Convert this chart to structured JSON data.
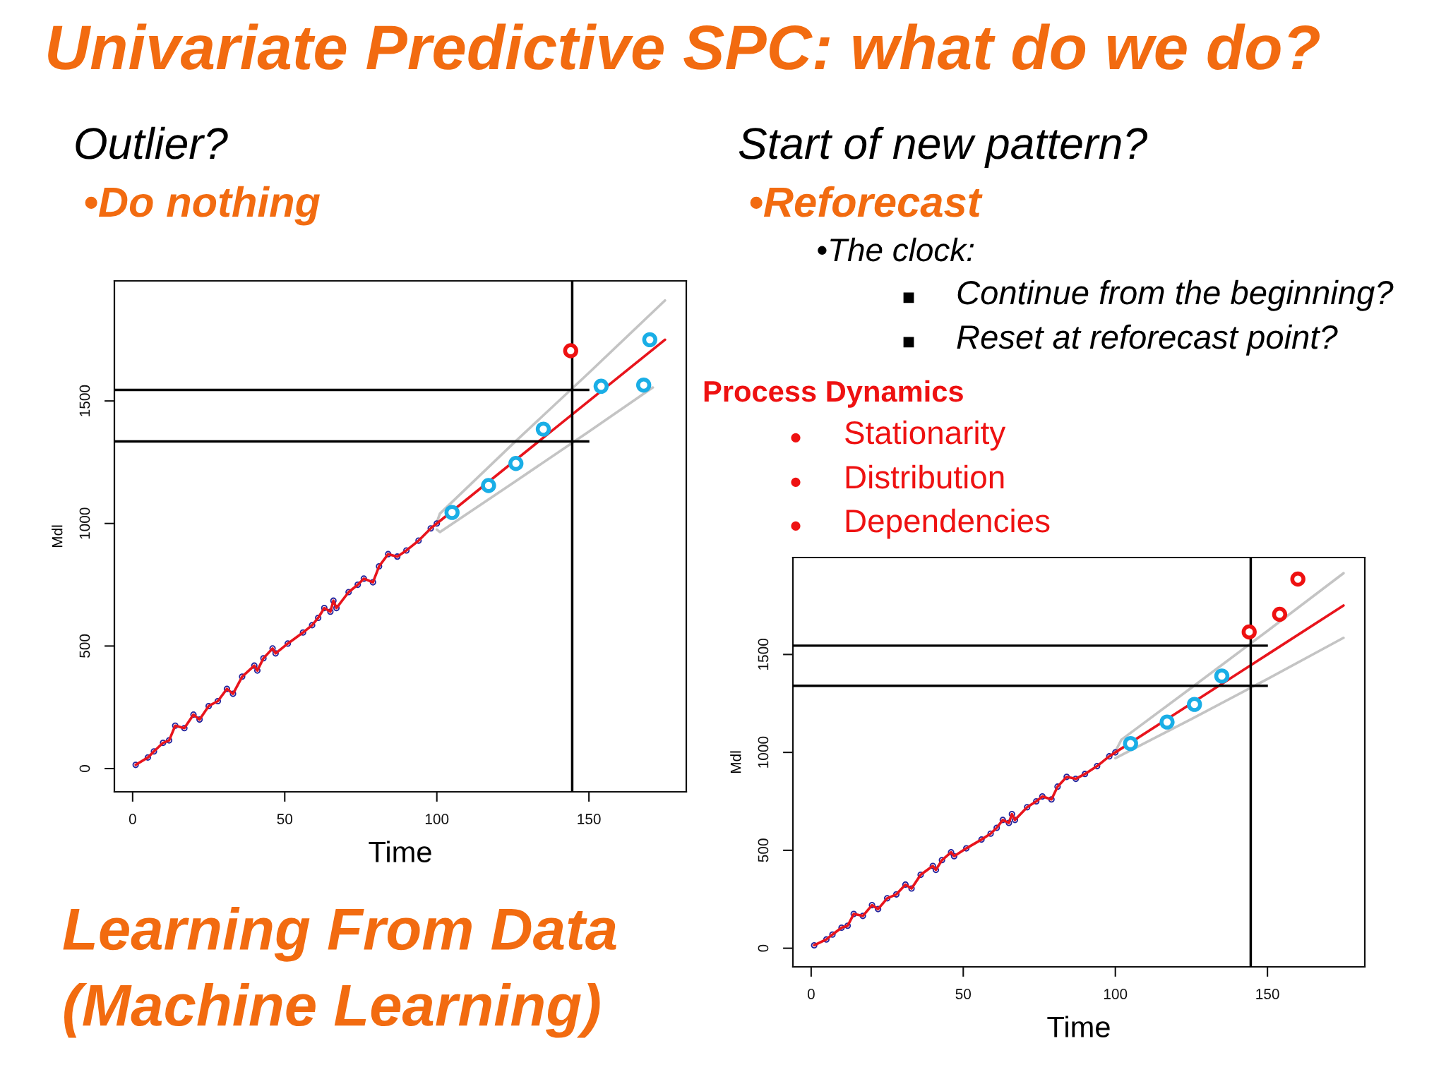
{
  "chart_data": [
    {
      "type": "other",
      "title": "Univariate Predictive SPC: what do we do?",
      "annotations": [
        "Process Dynamics",
        "●",
        "Stationarity",
        "●",
        "Distribution",
        "●",
        "Dependencies",
        "Learning From Data\n(Machine Learning)"
      ]
    },
    {
      "type": "line",
      "title": "Outlier?",
      "subtitle": "•Do nothing",
      "xlabel": "Time",
      "ylabel": "Mdl",
      "xlim": [
        -6,
        182
      ],
      "xticks": [
        0,
        50,
        100,
        150
      ],
      "ylim": [
        -95,
        1990
      ],
      "yticks": [
        0,
        500,
        1000,
        1500
      ],
      "series": [
        {
          "type": "line",
          "color": "#c4c4c4",
          "x": [
            100,
            101,
            125,
            150,
            175
          ],
          "values": [
            1005,
            1040,
            1325,
            1615,
            1910
          ]
        },
        {
          "type": "line",
          "color": "#c4c4c4",
          "x": [
            100,
            101,
            125,
            150,
            171
          ],
          "values": [
            975,
            965,
            1165,
            1375,
            1555
          ]
        },
        {
          "type": "scatter",
          "color": "#23239c",
          "marker": "circle",
          "x": [
            1,
            5,
            7,
            10,
            12,
            14,
            17,
            20,
            22,
            25,
            28,
            31,
            33,
            36,
            40,
            41,
            43,
            46,
            47,
            51,
            56,
            59,
            61,
            63,
            65,
            66,
            67,
            71,
            74,
            76,
            79,
            81,
            84,
            87,
            90,
            94,
            98,
            100
          ],
          "values": [
            15,
            45,
            70,
            105,
            115,
            175,
            165,
            220,
            200,
            255,
            275,
            325,
            305,
            375,
            420,
            400,
            450,
            490,
            470,
            510,
            555,
            585,
            615,
            655,
            640,
            685,
            655,
            720,
            750,
            775,
            760,
            825,
            875,
            865,
            890,
            930,
            980,
            1000
          ]
        },
        {
          "type": "line",
          "color": "#e8141c",
          "x": [
            1,
            5,
            7,
            10,
            12,
            14,
            17,
            20,
            22,
            25,
            28,
            31,
            33,
            36,
            40,
            41,
            43,
            46,
            47,
            51,
            56,
            59,
            61,
            63,
            65,
            66,
            67,
            71,
            74,
            76,
            79,
            81,
            84,
            87,
            90,
            94,
            98,
            100,
            150,
            175
          ],
          "values": [
            15,
            45,
            70,
            105,
            115,
            175,
            165,
            220,
            200,
            255,
            275,
            325,
            305,
            375,
            420,
            400,
            450,
            490,
            470,
            510,
            555,
            585,
            615,
            655,
            640,
            685,
            655,
            720,
            750,
            775,
            760,
            825,
            875,
            865,
            890,
            930,
            980,
            1000,
            1500,
            1750
          ]
        },
        {
          "type": "scatter",
          "color": "#1aaee6",
          "marker": "circle",
          "x": [
            105,
            117,
            126,
            135,
            154,
            168,
            170
          ],
          "values": [
            1045,
            1155,
            1245,
            1385,
            1560,
            1565,
            1750
          ]
        },
        {
          "type": "scatter",
          "color": "#ee1111",
          "marker": "circle",
          "x": [
            144
          ],
          "values": [
            1705
          ]
        }
      ],
      "ref_lines": [
        {
          "axis": "y",
          "value": 1545,
          "color": "#000000"
        },
        {
          "axis": "y",
          "value": 1335,
          "color": "#000000"
        },
        {
          "axis": "x",
          "value": 144.5,
          "color": "#000000"
        }
      ]
    },
    {
      "type": "line",
      "title": "Start of new pattern?",
      "subtitle": "•Reforecast",
      "annotations": [
        "•The clock:",
        "■",
        "Continue from the beginning?",
        "■",
        "Reset at reforecast point?"
      ],
      "xlabel": "Time",
      "ylabel": "Mdl",
      "xlim": [
        -6,
        182
      ],
      "xticks": [
        0,
        50,
        100,
        150
      ],
      "ylim": [
        -95,
        1995
      ],
      "yticks": [
        0,
        500,
        1000,
        1500
      ],
      "series": [
        {
          "type": "line",
          "color": "#c4c4c4",
          "x": [
            100,
            102,
            125,
            150,
            175
          ],
          "values": [
            1005,
            1065,
            1330,
            1620,
            1915
          ]
        },
        {
          "type": "line",
          "color": "#c4c4c4",
          "x": [
            100,
            125,
            150,
            175
          ],
          "values": [
            970,
            1170,
            1375,
            1585
          ]
        },
        {
          "type": "scatter",
          "color": "#23239c",
          "marker": "circle",
          "x": [
            1,
            5,
            7,
            10,
            12,
            14,
            17,
            20,
            22,
            25,
            28,
            31,
            33,
            36,
            40,
            41,
            43,
            46,
            47,
            51,
            56,
            59,
            61,
            63,
            65,
            66,
            67,
            71,
            74,
            76,
            79,
            81,
            84,
            87,
            90,
            94,
            98,
            100
          ],
          "values": [
            15,
            45,
            70,
            105,
            115,
            175,
            165,
            220,
            200,
            255,
            275,
            325,
            305,
            375,
            420,
            400,
            450,
            490,
            470,
            510,
            555,
            585,
            615,
            655,
            640,
            685,
            655,
            720,
            750,
            775,
            760,
            825,
            875,
            865,
            890,
            930,
            980,
            1000
          ]
        },
        {
          "type": "line",
          "color": "#e8141c",
          "x": [
            1,
            5,
            7,
            10,
            12,
            14,
            17,
            20,
            22,
            25,
            28,
            31,
            33,
            36,
            40,
            41,
            43,
            46,
            47,
            51,
            56,
            59,
            61,
            63,
            65,
            66,
            67,
            71,
            74,
            76,
            79,
            81,
            84,
            87,
            90,
            94,
            98,
            100,
            150,
            175
          ],
          "values": [
            15,
            45,
            70,
            105,
            115,
            175,
            165,
            220,
            200,
            255,
            275,
            325,
            305,
            375,
            420,
            400,
            450,
            490,
            470,
            510,
            555,
            585,
            615,
            655,
            640,
            685,
            655,
            720,
            750,
            775,
            760,
            825,
            875,
            865,
            890,
            930,
            980,
            1000,
            1500,
            1750
          ]
        },
        {
          "type": "scatter",
          "color": "#1aaee6",
          "marker": "circle",
          "x": [
            105,
            117,
            126,
            135
          ],
          "values": [
            1045,
            1155,
            1245,
            1390
          ]
        },
        {
          "type": "scatter",
          "color": "#ee1111",
          "marker": "circle",
          "x": [
            144,
            154,
            160
          ],
          "values": [
            1615,
            1705,
            1885
          ]
        }
      ],
      "ref_lines": [
        {
          "axis": "y",
          "value": 1545,
          "color": "#000000"
        },
        {
          "axis": "y",
          "value": 1340,
          "color": "#000000"
        },
        {
          "axis": "x",
          "value": 144.5,
          "color": "#000000"
        }
      ]
    }
  ]
}
